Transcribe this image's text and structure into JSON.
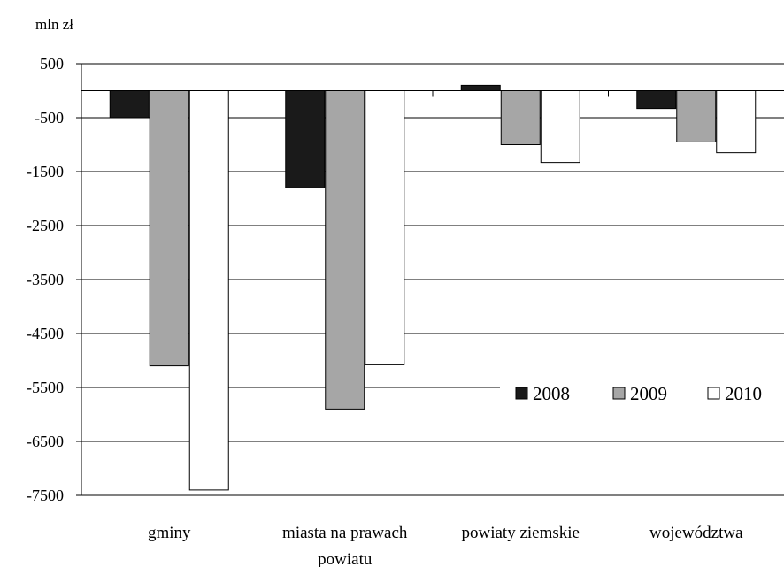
{
  "chart_data": {
    "type": "bar",
    "unit_label": "mln zł",
    "categories": [
      "gminy",
      "miasta na prawach powiatu",
      "powiaty ziemskie",
      "województwa"
    ],
    "category_label_lines": [
      [
        "gminy"
      ],
      [
        "miasta na prawach",
        "powiatu"
      ],
      [
        "powiaty ziemskie"
      ],
      [
        "województwa"
      ]
    ],
    "series": [
      {
        "name": "2008",
        "color": "#1a1a1a",
        "values": [
          -500,
          -1800,
          100,
          -330
        ]
      },
      {
        "name": "2009",
        "color": "#a6a6a6",
        "values": [
          -5100,
          -5900,
          -1000,
          -950
        ]
      },
      {
        "name": "2010",
        "color": "#ffffff",
        "values": [
          -7400,
          -5080,
          -1330,
          -1150
        ]
      }
    ],
    "y_ticks": [
      500,
      -500,
      -1500,
      -2500,
      -3500,
      -4500,
      -5500,
      -6500,
      -7500
    ],
    "ylim": [
      -7500,
      500
    ],
    "grid": true,
    "legend_position": "bottom-right"
  }
}
